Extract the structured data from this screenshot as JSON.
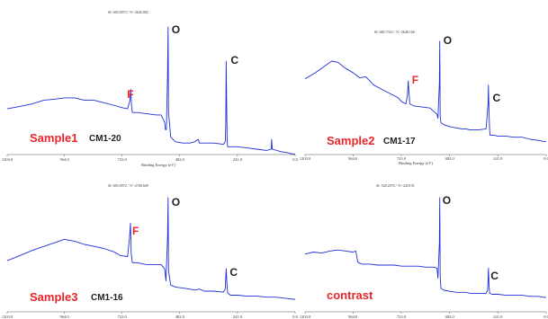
{
  "chart_data": [
    {
      "type": "line",
      "header": "SI: 683.9073 / 'S':-2645.882",
      "xlabel": "Binding Energy (eV)",
      "xlim": [
        1203.0,
        0.0
      ],
      "x_ticks": [
        "1203.0",
        "964.0",
        "723.0",
        "482.0",
        "241.0",
        "0.0"
      ],
      "sample_label": "Sample1",
      "code_label": "CM1-20",
      "peak_labels": {
        "F": "F",
        "O": "O",
        "C": "C"
      },
      "line_color": "#1f2fd6",
      "series": [
        {
          "x": [
            1203,
            1150,
            1100,
            1050,
            1000,
            964,
            920,
            880,
            840,
            800,
            760,
            723,
            700,
            690,
            687,
            684,
            680,
            660,
            620,
            580,
            560,
            545,
            542,
            538,
            533,
            531,
            529,
            520,
            500,
            470,
            440,
            420,
            405,
            400,
            380,
            340,
            300,
            292,
            290,
            288,
            286,
            284,
            282,
            270,
            240,
            200,
            160,
            120,
            100,
            98,
            96,
            60,
            30,
            10,
            0
          ],
          "y": [
            0.33,
            0.35,
            0.37,
            0.4,
            0.41,
            0.42,
            0.42,
            0.4,
            0.4,
            0.38,
            0.36,
            0.34,
            0.33,
            0.4,
            0.49,
            0.36,
            0.3,
            0.3,
            0.29,
            0.28,
            0.28,
            0.22,
            0.16,
            0.16,
            0.6,
            1.0,
            0.3,
            0.1,
            0.06,
            0.05,
            0.05,
            0.06,
            0.08,
            0.05,
            0.05,
            0.05,
            0.04,
            0.06,
            0.2,
            0.72,
            0.35,
            0.06,
            0.02,
            0.02,
            0.02,
            0.01,
            0.0,
            -0.01,
            0.0,
            0.08,
            0.0,
            -0.02,
            -0.03,
            -0.04,
            -0.04
          ]
        }
      ]
    },
    {
      "type": "line",
      "header": "SI: 682.7323 / 'S':-2648.166",
      "xlabel": "Binding Energy (eV)",
      "xlim": [
        1203.0,
        0.0
      ],
      "x_ticks": [
        "1203.0",
        "964.0",
        "723.0",
        "482.0",
        "241.0",
        "0.0"
      ],
      "sample_label": "Sample2",
      "code_label": "CM1-17",
      "peak_labels": {
        "F": "F",
        "O": "O",
        "C": "C"
      },
      "line_color": "#1f2fd6",
      "series": [
        {
          "x": [
            1203,
            1150,
            1100,
            1070,
            1040,
            1000,
            964,
            930,
            900,
            880,
            860,
            820,
            780,
            740,
            720,
            700,
            692,
            688,
            685,
            680,
            660,
            620,
            580,
            545,
            540,
            533,
            531,
            529,
            525,
            510,
            480,
            450,
            420,
            400,
            380,
            340,
            300,
            290,
            288,
            285,
            282,
            280,
            260,
            240,
            200,
            160,
            120,
            80,
            40,
            10,
            0
          ],
          "y": [
            0.64,
            0.7,
            0.77,
            0.81,
            0.8,
            0.74,
            0.7,
            0.65,
            0.66,
            0.62,
            0.58,
            0.54,
            0.5,
            0.46,
            0.42,
            0.4,
            0.48,
            0.62,
            0.52,
            0.4,
            0.38,
            0.37,
            0.36,
            0.3,
            0.26,
            0.6,
            1.0,
            0.28,
            0.22,
            0.2,
            0.18,
            0.17,
            0.16,
            0.16,
            0.15,
            0.15,
            0.16,
            0.4,
            0.58,
            0.3,
            0.14,
            0.1,
            0.1,
            0.09,
            0.09,
            0.08,
            0.08,
            0.06,
            0.05,
            0.04,
            0.04
          ]
        }
      ]
    },
    {
      "type": "line",
      "header": "SI: 683.9072 / 'S':-2768.669",
      "xlabel": "",
      "xlim": [
        1203.0,
        0.0
      ],
      "x_ticks": [
        "1203.0",
        "964.0",
        "723.0",
        "482.0",
        "241.0",
        "0.0"
      ],
      "sample_label": "Sample3",
      "code_label": "CM1-16",
      "peak_labels": {
        "F": "F",
        "O": "O",
        "C": "C"
      },
      "line_color": "#1f2fd6",
      "series": [
        {
          "x": [
            1203,
            1150,
            1100,
            1050,
            1000,
            964,
            920,
            880,
            840,
            800,
            760,
            730,
            700,
            692,
            688,
            685,
            680,
            660,
            620,
            580,
            560,
            545,
            540,
            533,
            531,
            529,
            520,
            500,
            470,
            440,
            420,
            400,
            380,
            340,
            300,
            292,
            290,
            288,
            285,
            282,
            270,
            240,
            200,
            160,
            120,
            80,
            40,
            10,
            0
          ],
          "y": [
            0.38,
            0.43,
            0.48,
            0.52,
            0.56,
            0.59,
            0.57,
            0.54,
            0.52,
            0.5,
            0.47,
            0.43,
            0.42,
            0.6,
            0.75,
            0.45,
            0.36,
            0.36,
            0.34,
            0.34,
            0.34,
            0.3,
            0.18,
            0.6,
            1.0,
            0.28,
            0.14,
            0.12,
            0.11,
            0.1,
            0.09,
            0.1,
            0.08,
            0.08,
            0.07,
            0.1,
            0.22,
            0.3,
            0.15,
            0.06,
            0.04,
            0.04,
            0.03,
            0.03,
            0.02,
            0.02,
            0.01,
            0.0,
            0.0
          ]
        }
      ]
    },
    {
      "type": "line",
      "header": "SI: 528.2070 / 'S':-2410.91",
      "xlabel": "",
      "xlim": [
        1203.0,
        0.0
      ],
      "x_ticks": [
        "1203.0",
        "964.0",
        "723.0",
        "482.0",
        "241.0",
        "0.0"
      ],
      "sample_label": "contrast",
      "code_label": "",
      "peak_labels": {
        "O": "O",
        "C": "C"
      },
      "line_color": "#1f2fd6",
      "series": [
        {
          "x": [
            1203,
            1160,
            1120,
            1080,
            1040,
            1000,
            964,
            950,
            940,
            920,
            880,
            840,
            800,
            760,
            720,
            680,
            640,
            600,
            560,
            545,
            540,
            533,
            531,
            529,
            525,
            510,
            480,
            450,
            420,
            400,
            380,
            340,
            300,
            292,
            290,
            288,
            285,
            282,
            270,
            240,
            200,
            160,
            120,
            80,
            40,
            10,
            0
          ],
          "y": [
            0.44,
            0.46,
            0.45,
            0.47,
            0.48,
            0.47,
            0.46,
            0.47,
            0.36,
            0.34,
            0.34,
            0.33,
            0.33,
            0.33,
            0.32,
            0.32,
            0.32,
            0.31,
            0.31,
            0.3,
            0.2,
            0.55,
            1.0,
            0.22,
            0.1,
            0.08,
            0.07,
            0.06,
            0.06,
            0.06,
            0.05,
            0.05,
            0.05,
            0.08,
            0.18,
            0.3,
            0.12,
            0.05,
            0.04,
            0.04,
            0.03,
            0.03,
            0.03,
            0.02,
            0.02,
            0.01,
            0.01
          ]
        }
      ]
    }
  ]
}
